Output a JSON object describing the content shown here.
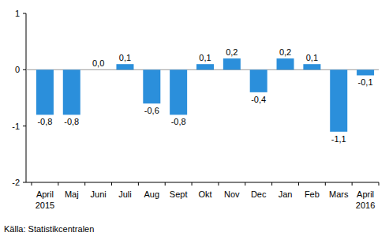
{
  "chart_data": {
    "type": "bar",
    "categories": [
      "April 2015",
      "Maj",
      "Juni",
      "Juli",
      "Aug",
      "Sept",
      "Okt",
      "Nov",
      "Dec",
      "Jan",
      "Feb",
      "Mars",
      "April 2016"
    ],
    "values": [
      -0.8,
      -0.8,
      0.0,
      0.1,
      -0.6,
      -0.8,
      0.1,
      0.2,
      -0.4,
      0.2,
      0.1,
      -1.1,
      -0.1
    ],
    "value_labels": [
      "-0,8",
      "-0,8",
      "0,0",
      "0,1",
      "-0,6",
      "-0,8",
      "0,1",
      "0,2",
      "-0,4",
      "0,2",
      "0,1",
      "-1,1",
      "-0,1"
    ],
    "color": "#2b8fdb",
    "ylim": [
      -2,
      1
    ],
    "yticks": [
      1,
      0,
      -1,
      -2
    ],
    "grid": false,
    "data_labels": true,
    "source": "Källa: Statistikcentralen"
  }
}
